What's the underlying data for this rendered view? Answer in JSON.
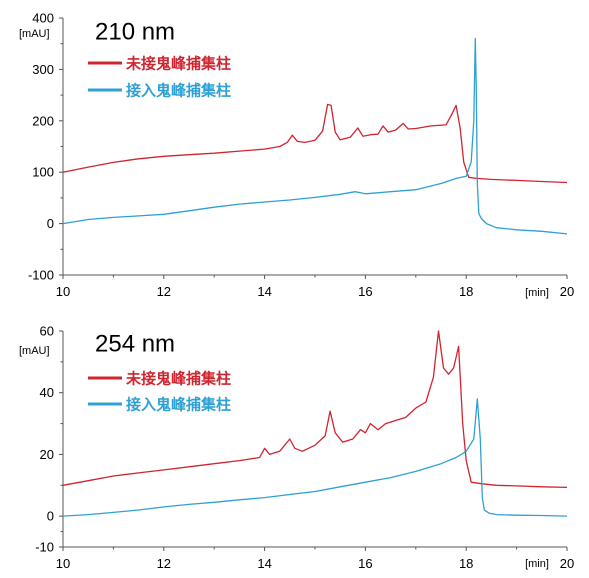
{
  "chart_data": [
    {
      "type": "line",
      "title": "210 nm",
      "ylabel": "[mAU]",
      "xlabel": "[min]",
      "xlim": [
        10,
        20
      ],
      "ylim": [
        -100,
        400
      ],
      "xticks": [
        "10",
        "12",
        "14",
        "16",
        "18",
        "20"
      ],
      "yticks": [
        "-100",
        "0",
        "100",
        "200",
        "300",
        "400"
      ],
      "legend": "top-left",
      "series": [
        {
          "name": "未接鬼峰捕集柱",
          "color": "#d0242f",
          "x": [
            10.0,
            10.5,
            11.0,
            11.5,
            12.0,
            12.5,
            13.0,
            13.5,
            14.0,
            14.3,
            14.45,
            14.55,
            14.65,
            14.8,
            15.0,
            15.15,
            15.25,
            15.32,
            15.4,
            15.5,
            15.7,
            15.85,
            15.95,
            16.1,
            16.25,
            16.35,
            16.45,
            16.6,
            16.75,
            16.85,
            17.0,
            17.3,
            17.6,
            17.7,
            17.8,
            17.88,
            17.95,
            18.05,
            18.2,
            18.5,
            19.0,
            19.5,
            20.0
          ],
          "y": [
            100,
            110,
            119,
            126,
            131,
            134,
            137,
            141,
            145,
            150,
            158,
            172,
            160,
            158,
            162,
            180,
            232,
            230,
            178,
            163,
            168,
            186,
            170,
            173,
            174,
            190,
            178,
            182,
            195,
            184,
            185,
            190,
            192,
            210,
            230,
            185,
            120,
            90,
            88,
            86,
            84,
            82,
            80
          ]
        },
        {
          "name": "接入鬼峰捕集柱",
          "color": "#2ea0d3",
          "x": [
            10.0,
            10.5,
            11.0,
            11.5,
            12.0,
            12.5,
            13.0,
            13.5,
            14.0,
            14.5,
            15.0,
            15.5,
            15.8,
            16.0,
            16.5,
            17.0,
            17.5,
            17.8,
            18.0,
            18.1,
            18.15,
            18.18,
            18.2,
            18.22,
            18.25,
            18.3,
            18.4,
            18.6,
            19.0,
            19.5,
            20.0
          ],
          "y": [
            0,
            8,
            12,
            15,
            18,
            25,
            32,
            38,
            42,
            46,
            51,
            57,
            62,
            58,
            62,
            66,
            78,
            88,
            92,
            120,
            200,
            360,
            260,
            80,
            20,
            10,
            0,
            -8,
            -12,
            -15,
            -20
          ]
        }
      ]
    },
    {
      "type": "line",
      "title": "254 nm",
      "ylabel": "[mAU]",
      "xlabel": "[min]",
      "xlim": [
        10,
        20
      ],
      "ylim": [
        -10,
        60
      ],
      "xticks": [
        "10",
        "12",
        "14",
        "16",
        "18",
        "20"
      ],
      "yticks": [
        "-10",
        "0",
        "20",
        "40",
        "60"
      ],
      "legend": "top-left",
      "series": [
        {
          "name": "未接鬼峰捕集柱",
          "color": "#d0242f",
          "x": [
            10.0,
            10.5,
            11.0,
            11.5,
            12.0,
            12.5,
            13.0,
            13.5,
            13.9,
            14.0,
            14.1,
            14.3,
            14.5,
            14.6,
            14.75,
            15.0,
            15.2,
            15.3,
            15.4,
            15.55,
            15.75,
            15.9,
            16.0,
            16.1,
            16.25,
            16.4,
            16.6,
            16.8,
            17.0,
            17.2,
            17.35,
            17.45,
            17.55,
            17.65,
            17.75,
            17.85,
            17.93,
            18.0,
            18.1,
            18.3,
            18.6,
            19.0,
            19.5,
            20.0
          ],
          "y": [
            10,
            11.5,
            13,
            14,
            15,
            16,
            17,
            18,
            19,
            22,
            20,
            21,
            25,
            22,
            21,
            23,
            26,
            34,
            27,
            24,
            25,
            28,
            27,
            30,
            28,
            30,
            31,
            32,
            35,
            37,
            45,
            60,
            48,
            46,
            48,
            55,
            30,
            18,
            11,
            10.5,
            10,
            9.8,
            9.5,
            9.3
          ]
        },
        {
          "name": "接入鬼峰捕集柱",
          "color": "#2ea0d3",
          "x": [
            10.0,
            10.5,
            11.0,
            11.5,
            12.0,
            12.5,
            13.0,
            13.5,
            14.0,
            14.5,
            15.0,
            15.5,
            16.0,
            16.5,
            17.0,
            17.5,
            17.8,
            18.0,
            18.15,
            18.22,
            18.28,
            18.32,
            18.36,
            18.45,
            18.6,
            19.0,
            19.5,
            20.0
          ],
          "y": [
            0,
            0.5,
            1.2,
            2,
            3,
            3.8,
            4.5,
            5.3,
            6,
            7,
            8,
            9.5,
            11,
            12.5,
            14.5,
            17,
            19,
            21,
            25,
            38,
            25,
            6,
            2,
            1,
            0.5,
            0.3,
            0.2,
            0
          ]
        }
      ]
    }
  ]
}
